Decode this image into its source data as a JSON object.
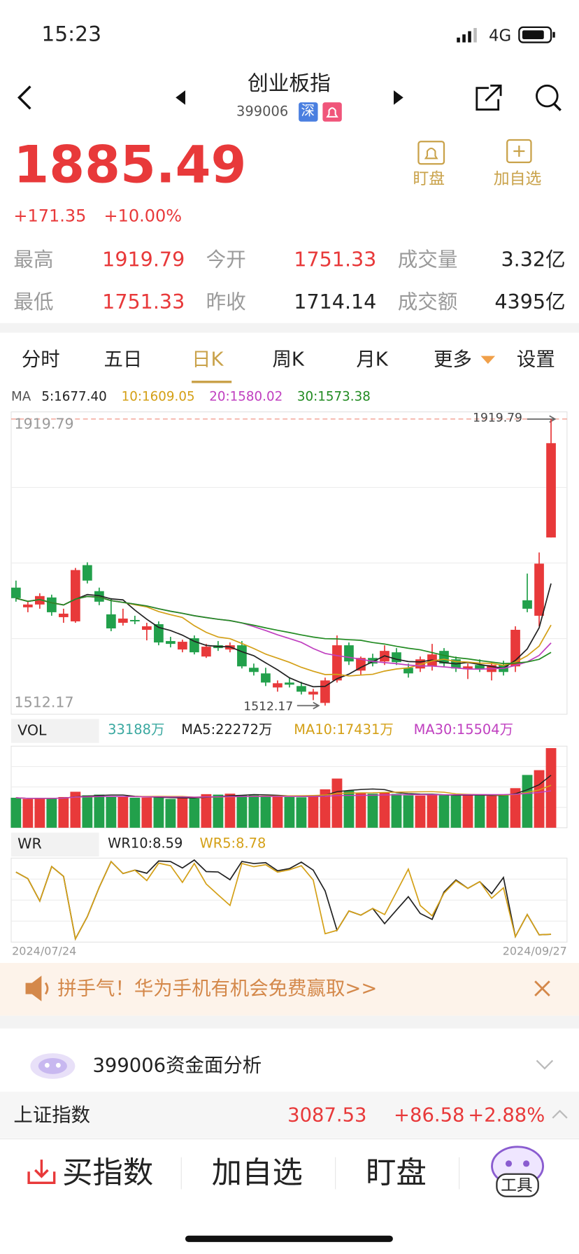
{
  "status": {
    "time": "15:23",
    "network": "4G"
  },
  "header": {
    "title": "创业板指",
    "code": "399006",
    "exchange": "深"
  },
  "quote": {
    "price": "1885.49",
    "change": "+171.35",
    "change_pct": "+10.00%"
  },
  "actions": [
    "盯盘",
    "加自选"
  ],
  "stats": [
    {
      "label": "最高",
      "value": "1919.79"
    },
    {
      "label": "今开",
      "value": "1751.33"
    },
    {
      "label": "成交量",
      "value": "3.32亿"
    },
    {
      "label": "最低",
      "value": "1751.33"
    },
    {
      "label": "昨收",
      "value": "1714.14"
    },
    {
      "label": "成交额",
      "value": "4395亿"
    }
  ],
  "tabs": [
    "分时",
    "五日",
    "日K",
    "周K",
    "月K",
    "更多",
    "设置"
  ],
  "chart_data": {
    "type": "candlestick",
    "ma_legend": {
      "label": "MA",
      "items": [
        "5:1677.40",
        "10:1609.05",
        "20:1580.02",
        "30:1573.38"
      ]
    },
    "price_labels": {
      "high": "1919.79",
      "low": "1512.17"
    },
    "ylim": [
      1500,
      1930
    ],
    "candles": [
      [
        1680,
        1690,
        1660,
        1665
      ],
      [
        1652,
        1660,
        1645,
        1656
      ],
      [
        1656,
        1672,
        1650,
        1668
      ],
      [
        1666,
        1670,
        1640,
        1645
      ],
      [
        1638,
        1650,
        1630,
        1643
      ],
      [
        1632,
        1708,
        1630,
        1705
      ],
      [
        1712,
        1716,
        1686,
        1690
      ],
      [
        1675,
        1680,
        1655,
        1660
      ],
      [
        1642,
        1665,
        1618,
        1622
      ],
      [
        1630,
        1650,
        1626,
        1636
      ],
      [
        1634,
        1640,
        1628,
        1632
      ],
      [
        1620,
        1630,
        1605,
        1625
      ],
      [
        1628,
        1632,
        1598,
        1602
      ],
      [
        1604,
        1610,
        1595,
        1600
      ],
      [
        1592,
        1606,
        1588,
        1603
      ],
      [
        1608,
        1612,
        1585,
        1588
      ],
      [
        1582,
        1600,
        1580,
        1596
      ],
      [
        1598,
        1604,
        1590,
        1594
      ],
      [
        1592,
        1602,
        1588,
        1598
      ],
      [
        1598,
        1604,
        1565,
        1568
      ],
      [
        1566,
        1572,
        1555,
        1560
      ],
      [
        1558,
        1566,
        1540,
        1545
      ],
      [
        1538,
        1548,
        1532,
        1544
      ],
      [
        1545,
        1552,
        1538,
        1542
      ],
      [
        1540,
        1546,
        1528,
        1532
      ],
      [
        1528,
        1536,
        1520,
        1532
      ],
      [
        1516,
        1552,
        1512.17,
        1548
      ],
      [
        1548,
        1612,
        1545,
        1598
      ],
      [
        1598,
        1602,
        1570,
        1575
      ],
      [
        1562,
        1582,
        1555,
        1580
      ],
      [
        1580,
        1586,
        1568,
        1572
      ],
      [
        1575,
        1598,
        1570,
        1590
      ],
      [
        1588,
        1594,
        1570,
        1574
      ],
      [
        1566,
        1572,
        1552,
        1558
      ],
      [
        1565,
        1582,
        1560,
        1578
      ],
      [
        1568,
        1600,
        1562,
        1585
      ],
      [
        1590,
        1594,
        1568,
        1572
      ],
      [
        1578,
        1582,
        1560,
        1565
      ],
      [
        1564,
        1572,
        1550,
        1568
      ],
      [
        1570,
        1578,
        1560,
        1564
      ],
      [
        1560,
        1574,
        1548,
        1570
      ],
      [
        1570,
        1576,
        1555,
        1560
      ],
      [
        1568,
        1625,
        1560,
        1620
      ],
      [
        1662,
        1700,
        1645,
        1650
      ],
      [
        1640,
        1730,
        1625,
        1714.14
      ],
      [
        1751.33,
        1919.79,
        1751.33,
        1885.49
      ]
    ],
    "volume": {
      "label": "VOL",
      "items": [
        "33188万",
        "MA5:22272万",
        "MA10:17431万",
        "MA30:15504万"
      ],
      "ylim": [
        0,
        34000
      ],
      "values": [
        12500,
        12000,
        12200,
        12300,
        12800,
        15000,
        13500,
        13800,
        13000,
        12800,
        12500,
        12600,
        12800,
        12000,
        12500,
        12200,
        14000,
        13800,
        14200,
        13500,
        13600,
        13400,
        13000,
        12800,
        12700,
        13200,
        16000,
        20500,
        15500,
        14500,
        14200,
        14800,
        14100,
        13500,
        13400,
        14000,
        13600,
        13400,
        13700,
        13500,
        13300,
        13800,
        16500,
        22000,
        24000,
        33188
      ]
    },
    "wr": {
      "label": "WR",
      "items": [
        "WR10:8.59",
        "WR5:8.78"
      ],
      "ylim": [
        0,
        100
      ]
    },
    "dates": [
      "2024/07/24",
      "2024/09/27"
    ]
  },
  "banner": "拼手气！华为手机有机会免费赢取>>",
  "analysis": "399006资金面分析",
  "ticker": {
    "name": "上证指数",
    "price": "3087.53",
    "change": "+86.58",
    "change_pct": "+2.88%"
  },
  "toolbar": [
    "买指数",
    "加自选",
    "盯盘",
    "工具"
  ]
}
